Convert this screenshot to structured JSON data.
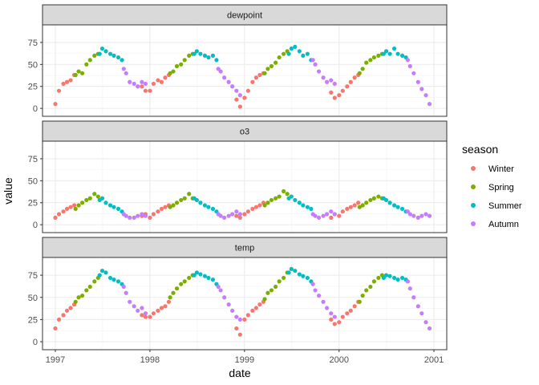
{
  "chart_data": {
    "type": "scatter",
    "facets": [
      "dewpoint",
      "o3",
      "temp"
    ],
    "x_label": "date",
    "y_label": "value",
    "x_ticks": [
      "1997",
      "1998",
      "1999",
      "2000",
      "2001"
    ],
    "x_range": [
      "1997-01-01",
      "2001-01-01"
    ],
    "y_ticks": [
      0,
      25,
      50,
      75
    ],
    "y_range": [
      -9,
      95
    ],
    "grid": true,
    "legend": {
      "title": "season",
      "position": "right",
      "entries": [
        {
          "name": "Winter",
          "color": "#F8766D"
        },
        {
          "name": "Spring",
          "color": "#7CAE00"
        },
        {
          "name": "Summer",
          "color": "#00BFC4"
        },
        {
          "name": "Autumn",
          "color": "#C77CFF"
        }
      ]
    },
    "panels": [
      {
        "name": "dewpoint",
        "series": [
          {
            "name": "Winter",
            "x": [
              "1997-01-01",
              "1997-01-15",
              "1997-02-01",
              "1997-02-15",
              "1997-03-01",
              "1997-03-15",
              "1997-12-01",
              "1997-12-15",
              "1998-01-01",
              "1998-01-15",
              "1998-02-01",
              "1998-02-15",
              "1998-03-01",
              "1998-03-15",
              "1998-12-01",
              "1998-12-15",
              "1999-01-01",
              "1999-01-15",
              "1999-02-01",
              "1999-02-15",
              "1999-03-01",
              "1999-03-15",
              "1999-12-01",
              "1999-12-15",
              "2000-01-01",
              "2000-01-15",
              "2000-02-01",
              "2000-02-15",
              "2000-03-01",
              "2000-03-15"
            ],
            "y": [
              5,
              20,
              28,
              30,
              32,
              38,
              25,
              20,
              20,
              28,
              32,
              30,
              35,
              38,
              10,
              2,
              12,
              20,
              30,
              35,
              38,
              40,
              18,
              12,
              15,
              20,
              25,
              30,
              35,
              38
            ]
          },
          {
            "name": "Spring",
            "x": [
              "1997-03-20",
              "1997-04-01",
              "1997-04-15",
              "1997-05-01",
              "1997-05-15",
              "1997-06-01",
              "1997-06-15",
              "1998-03-20",
              "1998-04-01",
              "1998-04-15",
              "1998-05-01",
              "1998-05-15",
              "1998-06-01",
              "1998-06-15",
              "1999-03-20",
              "1999-04-01",
              "1999-04-15",
              "1999-05-01",
              "1999-05-15",
              "1999-06-01",
              "1999-06-15",
              "2000-03-20",
              "2000-04-01",
              "2000-04-15",
              "2000-05-01",
              "2000-05-15",
              "2000-06-01",
              "2000-06-15"
            ],
            "y": [
              38,
              42,
              40,
              50,
              55,
              60,
              62,
              40,
              42,
              48,
              50,
              55,
              60,
              62,
              40,
              45,
              48,
              52,
              58,
              62,
              65,
              40,
              45,
              52,
              55,
              58,
              60,
              62
            ]
          },
          {
            "name": "Summer",
            "x": [
              "1997-06-21",
              "1997-07-01",
              "1997-07-15",
              "1997-08-01",
              "1997-08-15",
              "1997-09-01",
              "1997-09-15",
              "1998-06-21",
              "1998-07-01",
              "1998-07-15",
              "1998-08-01",
              "1998-08-15",
              "1998-09-01",
              "1998-09-15",
              "1999-06-21",
              "1999-07-01",
              "1999-07-15",
              "1999-08-01",
              "1999-08-15",
              "1999-09-01",
              "1999-09-15",
              "2000-06-21",
              "2000-07-01",
              "2000-07-15",
              "2000-08-01",
              "2000-08-15",
              "2000-09-01",
              "2000-09-15"
            ],
            "y": [
              62,
              68,
              65,
              62,
              60,
              58,
              55,
              62,
              65,
              62,
              60,
              58,
              60,
              55,
              62,
              68,
              70,
              65,
              60,
              62,
              55,
              62,
              65,
              62,
              68,
              62,
              60,
              58
            ]
          },
          {
            "name": "Autumn",
            "x": [
              "1997-09-22",
              "1997-10-01",
              "1997-10-15",
              "1997-11-01",
              "1997-11-15",
              "1997-12-01",
              "1997-12-15",
              "1998-09-22",
              "1998-10-01",
              "1998-10-15",
              "1998-11-01",
              "1998-11-15",
              "1998-12-01",
              "1998-12-15",
              "1999-09-22",
              "1999-10-01",
              "1999-10-15",
              "1999-11-01",
              "1999-11-15",
              "1999-12-01",
              "1999-12-15",
              "2000-09-22",
              "2000-10-01",
              "2000-10-15",
              "2000-11-01",
              "2000-11-15",
              "2000-12-01",
              "2000-12-15"
            ],
            "y": [
              45,
              40,
              30,
              28,
              25,
              30,
              28,
              45,
              42,
              35,
              30,
              25,
              20,
              15,
              55,
              50,
              42,
              35,
              30,
              32,
              28,
              55,
              48,
              40,
              30,
              22,
              15,
              5
            ]
          }
        ]
      },
      {
        "name": "o3",
        "series": [
          {
            "name": "Winter",
            "x": [
              "1997-01-01",
              "1997-01-15",
              "1997-02-01",
              "1997-02-15",
              "1997-03-01",
              "1997-03-15",
              "1997-12-01",
              "1997-12-15",
              "1998-01-01",
              "1998-01-15",
              "1998-02-01",
              "1998-02-15",
              "1998-03-01",
              "1998-03-15",
              "1998-12-01",
              "1998-12-15",
              "1999-01-01",
              "1999-01-15",
              "1999-02-01",
              "1999-02-15",
              "1999-03-01",
              "1999-03-15",
              "1999-12-01",
              "1999-12-15",
              "2000-01-01",
              "2000-01-15",
              "2000-02-01",
              "2000-02-15",
              "2000-03-01",
              "2000-03-15"
            ],
            "y": [
              8,
              12,
              15,
              18,
              20,
              22,
              10,
              12,
              8,
              12,
              15,
              18,
              20,
              22,
              10,
              8,
              12,
              15,
              18,
              20,
              22,
              25,
              8,
              12,
              10,
              15,
              18,
              20,
              22,
              25
            ]
          },
          {
            "name": "Spring",
            "x": [
              "1997-03-20",
              "1997-04-01",
              "1997-04-15",
              "1997-05-01",
              "1997-05-15",
              "1997-06-01",
              "1997-06-15",
              "1998-03-20",
              "1998-04-01",
              "1998-04-15",
              "1998-05-01",
              "1998-05-15",
              "1998-06-01",
              "1998-06-15",
              "1999-03-20",
              "1999-04-01",
              "1999-04-15",
              "1999-05-01",
              "1999-05-15",
              "1999-06-01",
              "1999-06-15",
              "2000-03-20",
              "2000-04-01",
              "2000-04-15",
              "2000-05-01",
              "2000-05-15",
              "2000-06-01",
              "2000-06-15"
            ],
            "y": [
              18,
              22,
              25,
              28,
              30,
              35,
              32,
              20,
              22,
              25,
              28,
              30,
              35,
              30,
              22,
              25,
              28,
              30,
              32,
              38,
              35,
              20,
              22,
              25,
              28,
              30,
              32,
              30
            ]
          },
          {
            "name": "Summer",
            "x": [
              "1997-06-21",
              "1997-07-01",
              "1997-07-15",
              "1997-08-01",
              "1997-08-15",
              "1997-09-01",
              "1997-09-15",
              "1998-06-21",
              "1998-07-01",
              "1998-07-15",
              "1998-08-01",
              "1998-08-15",
              "1998-09-01",
              "1998-09-15",
              "1999-06-21",
              "1999-07-01",
              "1999-07-15",
              "1999-08-01",
              "1999-08-15",
              "1999-09-01",
              "1999-09-15",
              "2000-06-21",
              "2000-07-01",
              "2000-07-15",
              "2000-08-01",
              "2000-08-15",
              "2000-09-01",
              "2000-09-15"
            ],
            "y": [
              28,
              30,
              25,
              22,
              20,
              18,
              15,
              30,
              28,
              25,
              22,
              20,
              18,
              15,
              30,
              32,
              28,
              25,
              22,
              20,
              18,
              30,
              28,
              25,
              22,
              20,
              18,
              15
            ]
          },
          {
            "name": "Autumn",
            "x": [
              "1997-09-22",
              "1997-10-01",
              "1997-10-15",
              "1997-11-01",
              "1997-11-15",
              "1997-12-01",
              "1997-12-15",
              "1998-09-22",
              "1998-10-01",
              "1998-10-15",
              "1998-11-01",
              "1998-11-15",
              "1998-12-01",
              "1998-12-15",
              "1999-09-22",
              "1999-10-01",
              "1999-10-15",
              "1999-11-01",
              "1999-11-15",
              "1999-12-01",
              "1999-12-15",
              "2000-09-22",
              "2000-10-01",
              "2000-10-15",
              "2000-11-01",
              "2000-11-15",
              "2000-12-01",
              "2000-12-15"
            ],
            "y": [
              12,
              10,
              8,
              8,
              10,
              12,
              10,
              12,
              10,
              8,
              10,
              12,
              15,
              12,
              12,
              10,
              8,
              10,
              12,
              15,
              12,
              15,
              12,
              10,
              8,
              10,
              12,
              10
            ]
          }
        ]
      },
      {
        "name": "temp",
        "series": [
          {
            "name": "Winter",
            "x": [
              "1997-01-01",
              "1997-01-15",
              "1997-02-01",
              "1997-02-15",
              "1997-03-01",
              "1997-03-15",
              "1997-12-01",
              "1997-12-15",
              "1998-01-01",
              "1998-01-15",
              "1998-02-01",
              "1998-02-15",
              "1998-03-01",
              "1998-03-15",
              "1998-12-01",
              "1998-12-15",
              "1999-01-01",
              "1999-01-15",
              "1999-02-01",
              "1999-02-15",
              "1999-03-01",
              "1999-03-15",
              "1999-12-01",
              "1999-12-15",
              "2000-01-01",
              "2000-01-15",
              "2000-02-01",
              "2000-02-15",
              "2000-03-01",
              "2000-03-15"
            ],
            "y": [
              15,
              25,
              30,
              35,
              38,
              42,
              30,
              28,
              28,
              32,
              35,
              38,
              40,
              45,
              15,
              8,
              25,
              30,
              35,
              38,
              42,
              45,
              25,
              20,
              22,
              28,
              32,
              35,
              40,
              45
            ]
          },
          {
            "name": "Spring",
            "x": [
              "1997-03-20",
              "1997-04-01",
              "1997-04-15",
              "1997-05-01",
              "1997-05-15",
              "1997-06-01",
              "1997-06-15",
              "1998-03-20",
              "1998-04-01",
              "1998-04-15",
              "1998-05-01",
              "1998-05-15",
              "1998-06-01",
              "1998-06-15",
              "1999-03-20",
              "1999-04-01",
              "1999-04-15",
              "1999-05-01",
              "1999-05-15",
              "1999-06-01",
              "1999-06-15",
              "2000-03-20",
              "2000-04-01",
              "2000-04-15",
              "2000-05-01",
              "2000-05-15",
              "2000-06-01",
              "2000-06-15"
            ],
            "y": [
              45,
              50,
              52,
              58,
              62,
              68,
              72,
              50,
              55,
              60,
              65,
              68,
              72,
              75,
              48,
              55,
              58,
              62,
              68,
              72,
              78,
              45,
              52,
              58,
              62,
              68,
              72,
              75
            ]
          },
          {
            "name": "Summer",
            "x": [
              "1997-06-21",
              "1997-07-01",
              "1997-07-15",
              "1997-08-01",
              "1997-08-15",
              "1997-09-01",
              "1997-09-15",
              "1998-06-21",
              "1998-07-01",
              "1998-07-15",
              "1998-08-01",
              "1998-08-15",
              "1998-09-01",
              "1998-09-15",
              "1999-06-21",
              "1999-07-01",
              "1999-07-15",
              "1999-08-01",
              "1999-08-15",
              "1999-09-01",
              "1999-09-15",
              "2000-06-21",
              "2000-07-01",
              "2000-07-15",
              "2000-08-01",
              "2000-08-15",
              "2000-09-01",
              "2000-09-15"
            ],
            "y": [
              75,
              80,
              78,
              72,
              70,
              68,
              65,
              75,
              78,
              76,
              74,
              72,
              70,
              65,
              78,
              82,
              80,
              76,
              74,
              72,
              68,
              72,
              75,
              74,
              72,
              70,
              72,
              70
            ]
          },
          {
            "name": "Autumn",
            "x": [
              "1997-09-22",
              "1997-10-01",
              "1997-10-15",
              "1997-11-01",
              "1997-11-15",
              "1997-12-01",
              "1997-12-15",
              "1998-09-22",
              "1998-10-01",
              "1998-10-15",
              "1998-11-01",
              "1998-11-15",
              "1998-12-01",
              "1998-12-15",
              "1999-09-22",
              "1999-10-01",
              "1999-10-15",
              "1999-11-01",
              "1999-11-15",
              "1999-12-01",
              "1999-12-15",
              "2000-09-22",
              "2000-10-01",
              "2000-10-15",
              "2000-11-01",
              "2000-11-15",
              "2000-12-01",
              "2000-12-15"
            ],
            "y": [
              62,
              55,
              45,
              40,
              35,
              38,
              32,
              62,
              58,
              50,
              42,
              35,
              28,
              25,
              65,
              58,
              52,
              45,
              38,
              32,
              28,
              68,
              60,
              50,
              40,
              32,
              22,
              15
            ]
          }
        ]
      }
    ]
  }
}
